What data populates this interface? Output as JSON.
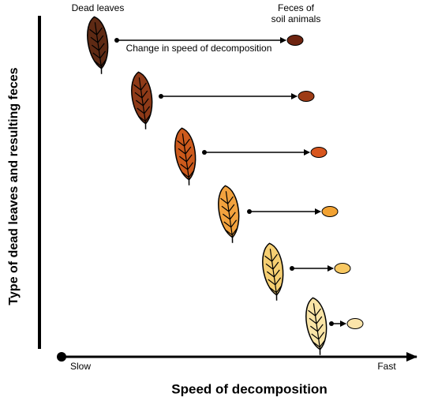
{
  "header": {
    "leaves_label": "Dead leaves",
    "feces_label_lines": [
      "Feces of",
      "soil animals"
    ],
    "arrow_label": "Change in speed of decomposition"
  },
  "y_axis": {
    "title": "Type of dead leaves and resulting feces"
  },
  "x_axis": {
    "title": "Speed of decomposition",
    "start_label": "Slow",
    "end_label": "Fast"
  },
  "rows": [
    {
      "leaf_color": "#5e2a14",
      "feces_color": "#6e2410"
    },
    {
      "leaf_color": "#8e3a18",
      "feces_color": "#9e3c16"
    },
    {
      "leaf_color": "#cc5a1c",
      "feces_color": "#d8561e"
    },
    {
      "leaf_color": "#f2a23e",
      "feces_color": "#f2a232"
    },
    {
      "leaf_color": "#f6cf72",
      "feces_color": "#f8c862"
    },
    {
      "leaf_color": "#f9e4a6",
      "feces_color": "#fbe4aa"
    }
  ]
}
